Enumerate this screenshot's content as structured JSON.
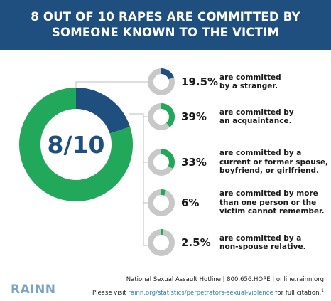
{
  "header": {
    "title_line1": "8 OUT OF 10 RAPES ARE COMMITTED BY",
    "title_line2": "SOMEONE KNOWN TO THE VICTIM"
  },
  "colors": {
    "header_bg": "#1e4f7f",
    "stranger": "#1e4f7f",
    "known": "#21a85a",
    "track": "#c8c8c8",
    "connector": "#bdbdbd"
  },
  "chart_data": [
    {
      "type": "pie",
      "style": "donut",
      "center_label": "8/10",
      "slices": [
        {
          "label": "stranger",
          "value": 20,
          "color": "#1e4f7f"
        },
        {
          "label": "known",
          "value": 80,
          "color": "#21a85a"
        }
      ]
    },
    {
      "type": "pie",
      "style": "small-donuts",
      "items": [
        {
          "pct_label": "19.5%",
          "value": 19.5,
          "color": "#1e4f7f",
          "desc": [
            "are committed",
            "by a stranger."
          ]
        },
        {
          "pct_label": "39%",
          "value": 39,
          "color": "#21a85a",
          "desc": [
            "are committed by",
            "an acquaintance."
          ]
        },
        {
          "pct_label": "33%",
          "value": 33,
          "color": "#21a85a",
          "desc": [
            "are committed by a",
            "current or former spouse,",
            "boyfriend, or girlfriend."
          ]
        },
        {
          "pct_label": "6%",
          "value": 6,
          "color": "#21a85a",
          "desc": [
            "are committed by more",
            "than one person or the",
            "victim cannot remember."
          ]
        },
        {
          "pct_label": "2.5%",
          "value": 2.5,
          "color": "#21a85a",
          "desc": [
            "are committed by a",
            "non-spouse relative."
          ]
        }
      ]
    }
  ],
  "footer": {
    "hotline": "National Sexual Assault Hotline | 800.656.HOPE | online.rainn.org",
    "citation_prefix": "Please visit ",
    "citation_link": "rainn.org/statistics/perpetrators-sexual-violence",
    "citation_suffix": " for full citation.",
    "citation_sup": "1",
    "logo": "RAINN"
  }
}
